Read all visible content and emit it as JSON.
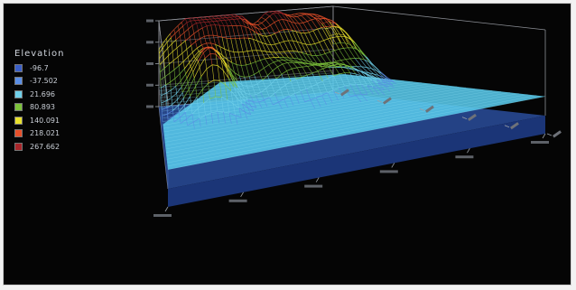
{
  "chart_data": {
    "type": "surface-3d",
    "legend": {
      "title": "Elevation",
      "placement": "left",
      "entries": [
        {
          "label": "-96.7",
          "color": "#3a5fc8"
        },
        {
          "label": "-37.502",
          "color": "#5a8ee6"
        },
        {
          "label": "21.696",
          "color": "#6fd0ea"
        },
        {
          "label": "80.893",
          "color": "#7cc23a"
        },
        {
          "label": "140.091",
          "color": "#e9e12c"
        },
        {
          "label": "218.021",
          "color": "#e8502a"
        },
        {
          "label": "267.662",
          "color": "#a8262a"
        }
      ]
    },
    "z_range": [
      -96.7,
      267.662
    ],
    "grid": true,
    "base_plane_color": "#2a4d9c",
    "water_plane_color": "#58c8ea"
  }
}
